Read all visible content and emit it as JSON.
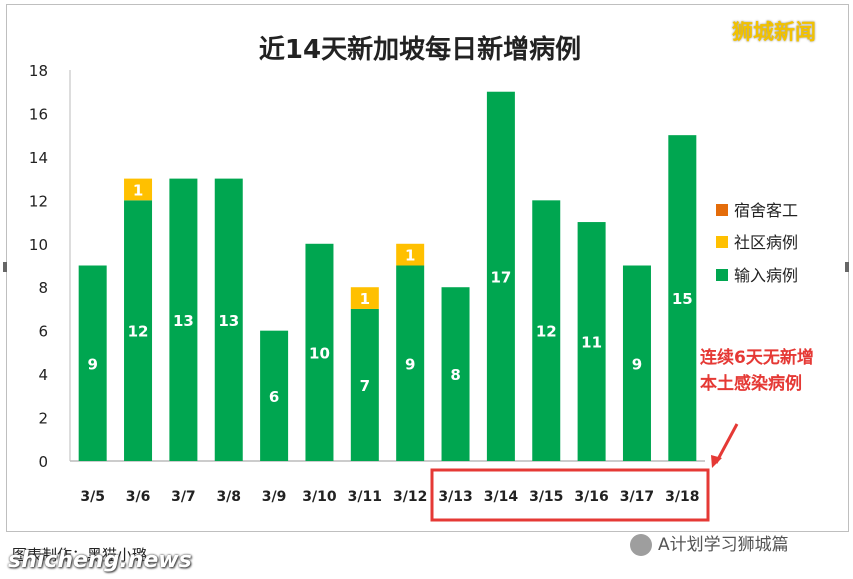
{
  "brand": "狮城新闻",
  "caption": "图表制作：黑猫小璐",
  "watermark": "shicheng.news",
  "wechat_label": "A计划学习狮城篇",
  "annotation": {
    "line1": "连续6天无新增",
    "line2": "本土感染病例"
  },
  "colors": {
    "imported": "#00a650",
    "community": "#ffc000",
    "dormitory": "#e46c0a",
    "highlight_box": "#e53935"
  },
  "chart_data": {
    "type": "bar",
    "stacked": true,
    "title": "近14天新加坡每日新增病例",
    "categories": [
      "3/5",
      "3/6",
      "3/7",
      "3/8",
      "3/9",
      "3/10",
      "3/11",
      "3/12",
      "3/13",
      "3/14",
      "3/15",
      "3/16",
      "3/17",
      "3/18"
    ],
    "series": [
      {
        "name": "宿舍客工",
        "color": "#e46c0a",
        "values": [
          0,
          0,
          0,
          0,
          0,
          0,
          0,
          0,
          0,
          0,
          0,
          0,
          0,
          0
        ]
      },
      {
        "name": "社区病例",
        "color": "#ffc000",
        "values": [
          0,
          1,
          0,
          0,
          0,
          0,
          1,
          1,
          0,
          0,
          0,
          0,
          0,
          0
        ]
      },
      {
        "name": "输入病例",
        "color": "#00a650",
        "values": [
          9,
          12,
          13,
          13,
          6,
          10,
          7,
          9,
          8,
          17,
          12,
          11,
          9,
          15
        ]
      }
    ],
    "ylim": [
      0,
      18
    ],
    "yticks": [
      0,
      2,
      4,
      6,
      8,
      10,
      12,
      14,
      16,
      18
    ],
    "grid": false,
    "legend_position": "right"
  }
}
